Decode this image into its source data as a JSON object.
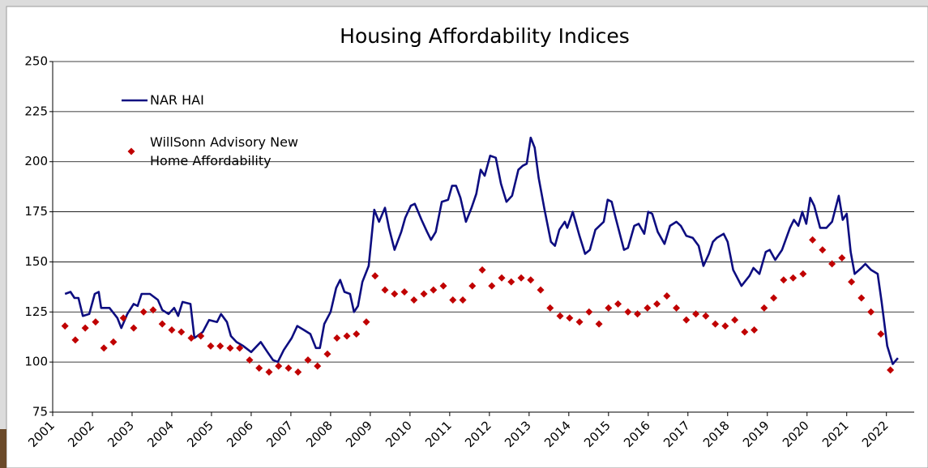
{
  "chart_data": {
    "type": "line",
    "title": "Housing Affordability Indices",
    "xlim": [
      2001,
      2022.7
    ],
    "xticks": [
      2001,
      2002,
      2003,
      2004,
      2005,
      2006,
      2007,
      2008,
      2009,
      2010,
      2011,
      2012,
      2013,
      2014,
      2015,
      2016,
      2017,
      2018,
      2019,
      2020,
      2021,
      2022
    ],
    "ylim": [
      75,
      250
    ],
    "yticks": [
      75,
      100,
      125,
      150,
      175,
      200,
      225,
      250
    ],
    "grid": true,
    "series": [
      {
        "name": "NAR HAI",
        "type": "line",
        "color": "#0d0d80",
        "x": [
          2001.31,
          2001.45,
          2001.55,
          2001.65,
          2001.76,
          2001.92,
          2002.06,
          2002.16,
          2002.22,
          2002.43,
          2002.63,
          2002.73,
          2002.88,
          2003.04,
          2003.14,
          2003.24,
          2003.45,
          2003.65,
          2003.76,
          2003.92,
          2004.06,
          2004.16,
          2004.27,
          2004.47,
          2004.57,
          2004.78,
          2004.94,
          2005.14,
          2005.24,
          2005.39,
          2005.49,
          2005.63,
          2005.8,
          2006.0,
          2006.24,
          2006.41,
          2006.55,
          2006.67,
          2006.82,
          2007.02,
          2007.16,
          2007.33,
          2007.49,
          2007.63,
          2007.73,
          2007.84,
          2008.0,
          2008.14,
          2008.24,
          2008.35,
          2008.49,
          2008.59,
          2008.69,
          2008.8,
          2008.96,
          2009.1,
          2009.22,
          2009.37,
          2009.47,
          2009.61,
          2009.78,
          2009.88,
          2010.02,
          2010.12,
          2010.29,
          2010.43,
          2010.53,
          2010.65,
          2010.8,
          2010.96,
          2011.06,
          2011.16,
          2011.27,
          2011.41,
          2011.55,
          2011.67,
          2011.78,
          2011.88,
          2012.02,
          2012.16,
          2012.29,
          2012.43,
          2012.57,
          2012.73,
          2012.84,
          2012.94,
          2013.04,
          2013.14,
          2013.24,
          2013.39,
          2013.55,
          2013.65,
          2013.76,
          2013.9,
          2013.96,
          2014.1,
          2014.27,
          2014.41,
          2014.53,
          2014.67,
          2014.88,
          2014.98,
          2015.08,
          2015.18,
          2015.39,
          2015.49,
          2015.65,
          2015.76,
          2015.9,
          2016.0,
          2016.1,
          2016.24,
          2016.41,
          2016.55,
          2016.71,
          2016.82,
          2016.96,
          2017.12,
          2017.27,
          2017.39,
          2017.53,
          2017.63,
          2017.73,
          2017.9,
          2018.0,
          2018.14,
          2018.35,
          2018.55,
          2018.65,
          2018.8,
          2018.96,
          2019.06,
          2019.2,
          2019.37,
          2019.57,
          2019.67,
          2019.78,
          2019.88,
          2019.98,
          2020.08,
          2020.18,
          2020.33,
          2020.49,
          2020.63,
          2020.8,
          2020.9,
          2021.0,
          2021.1,
          2021.2,
          2021.37,
          2021.47,
          2021.61,
          2021.78,
          2021.88,
          2022.02,
          2022.16,
          2022.29
        ],
        "values": [
          134,
          135,
          132,
          132,
          123,
          124,
          134,
          135,
          127,
          127,
          122,
          117,
          124,
          129,
          128,
          134,
          134,
          131,
          126,
          124,
          127,
          123,
          130,
          129,
          112,
          115,
          121,
          120,
          124,
          120,
          113,
          110,
          108,
          105,
          110,
          105,
          101,
          100,
          106,
          112,
          118,
          116,
          114,
          107,
          107,
          119,
          125,
          137,
          141,
          135,
          134,
          125,
          128,
          140,
          148,
          176,
          170,
          177,
          167,
          156,
          165,
          172,
          178,
          179,
          171,
          165,
          161,
          165,
          180,
          181,
          188,
          188,
          182,
          170,
          177,
          184,
          196,
          193,
          203,
          202,
          189,
          180,
          183,
          196,
          198,
          199,
          212,
          207,
          192,
          176,
          160,
          158,
          166,
          170,
          167,
          175,
          163,
          154,
          156,
          166,
          170,
          181,
          180,
          172,
          156,
          157,
          168,
          169,
          164,
          175,
          174,
          165,
          159,
          168,
          170,
          168,
          163,
          162,
          158,
          148,
          154,
          160,
          162,
          164,
          160,
          146,
          138,
          143,
          147,
          144,
          155,
          156,
          151,
          156,
          167,
          171,
          168,
          175,
          169,
          182,
          178,
          167,
          167,
          170,
          183,
          171,
          174,
          155,
          144,
          147,
          149,
          146,
          144,
          130,
          108,
          99,
          102
        ]
      },
      {
        "name": "WillSonn Advisory New Home Affordability",
        "type": "scatter",
        "color": "#c00000",
        "x": [
          2001.31,
          2001.57,
          2001.82,
          2002.08,
          2002.29,
          2002.53,
          2002.78,
          2003.04,
          2003.29,
          2003.53,
          2003.76,
          2004.0,
          2004.24,
          2004.49,
          2004.73,
          2004.98,
          2005.22,
          2005.47,
          2005.71,
          2005.96,
          2006.2,
          2006.45,
          2006.69,
          2006.94,
          2007.18,
          2007.43,
          2007.67,
          2007.92,
          2008.16,
          2008.41,
          2008.65,
          2008.9,
          2009.12,
          2009.37,
          2009.61,
          2009.86,
          2010.1,
          2010.35,
          2010.59,
          2010.84,
          2011.08,
          2011.33,
          2011.57,
          2011.82,
          2012.06,
          2012.31,
          2012.55,
          2012.8,
          2013.04,
          2013.29,
          2013.53,
          2013.78,
          2014.02,
          2014.27,
          2014.51,
          2014.76,
          2015.0,
          2015.24,
          2015.49,
          2015.73,
          2015.98,
          2016.22,
          2016.47,
          2016.71,
          2016.96,
          2017.2,
          2017.45,
          2017.69,
          2017.94,
          2018.18,
          2018.43,
          2018.67,
          2018.92,
          2019.16,
          2019.41,
          2019.65,
          2019.9,
          2020.14,
          2020.39,
          2020.63,
          2020.88,
          2021.12,
          2021.37,
          2021.61,
          2021.86,
          2022.1
        ],
        "values": [
          118,
          111,
          117,
          120,
          107,
          110,
          122,
          117,
          125,
          126,
          119,
          116,
          115,
          112,
          113,
          108,
          108,
          107,
          107,
          101,
          97,
          95,
          98,
          97,
          95,
          101,
          98,
          104,
          112,
          113,
          114,
          120,
          143,
          136,
          134,
          135,
          131,
          134,
          136,
          138,
          131,
          131,
          138,
          146,
          138,
          142,
          140,
          142,
          141,
          136,
          127,
          123,
          122,
          120,
          125,
          119,
          127,
          129,
          125,
          124,
          127,
          129,
          133,
          127,
          121,
          124,
          123,
          119,
          118,
          121,
          115,
          116,
          127,
          132,
          141,
          142,
          144,
          161,
          156,
          149,
          152,
          140,
          132,
          125,
          114,
          96
        ]
      }
    ]
  }
}
